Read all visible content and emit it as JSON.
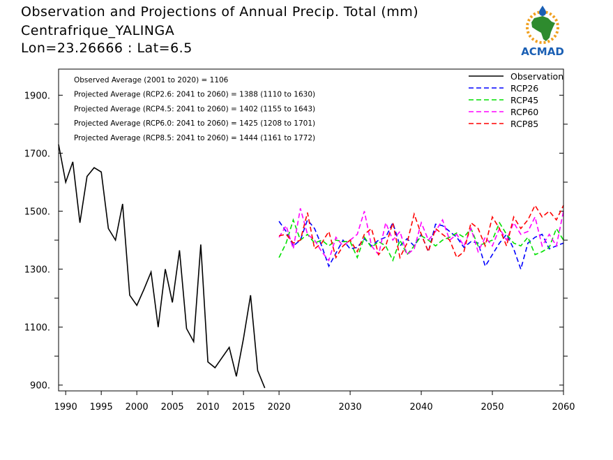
{
  "title": {
    "line1": "Observation and Projections of Annual Precip. Total (mm)",
    "line2": "Centrafrique_YALINGA",
    "line3": "Lon=23.26666 : Lat=6.5"
  },
  "logo": {
    "text": "ACMAD",
    "colors": {
      "africa": "#2e8b2e",
      "sun": "#f0a020",
      "drop": "#1a5fb4",
      "text": "#1a5fb4"
    }
  },
  "chart_data": {
    "type": "line",
    "xlim": [
      1989,
      2060
    ],
    "ylim": [
      880,
      1990
    ],
    "x_ticks": [
      {
        "value": 1990,
        "label": "1990"
      },
      {
        "value": 1995,
        "label": "1995"
      },
      {
        "value": 2000,
        "label": "2000"
      },
      {
        "value": 2005,
        "label": "2005"
      },
      {
        "value": 2010,
        "label": "2010"
      },
      {
        "value": 2015,
        "label": "2015"
      },
      {
        "value": 2020,
        "label": "2020"
      },
      {
        "value": 2030,
        "label": "2030"
      },
      {
        "value": 2040,
        "label": "2040"
      },
      {
        "value": 2050,
        "label": "2050"
      },
      {
        "value": 2060,
        "label": "2060"
      }
    ],
    "y_ticks": [
      {
        "value": 900,
        "label": "900."
      },
      {
        "value": 1100,
        "label": "1100."
      },
      {
        "value": 1300,
        "label": "1300."
      },
      {
        "value": 1500,
        "label": "1500."
      },
      {
        "value": 1700,
        "label": "1700."
      },
      {
        "value": 1900,
        "label": "1900."
      }
    ],
    "y_minor_ticks": [
      1000,
      1200,
      1400,
      1600,
      1800,
      2000
    ],
    "legend_position": "top-right",
    "annotations": [
      "Observed Average (2001 to 2020) = 1106",
      "Projected Average (RCP2.6: 2041 to 2060) = 1388 (1110 to 1630)",
      "Projected Average (RCP4.5: 2041 to 2060) = 1402 (1155 to 1643)",
      "Projected Average (RCP6.0: 2041 to 2060) = 1425 (1208 to 1701)",
      "Projected Average (RCP8.5: 2041 to 2060) = 1444 (1161 to 1772)"
    ],
    "series": [
      {
        "name": "Observation",
        "color": "#000000",
        "style": "solid",
        "x": [
          1989,
          1990,
          1991,
          1992,
          1993,
          1994,
          1995,
          1996,
          1997,
          1998,
          1999,
          2000,
          2001,
          2002,
          2003,
          2004,
          2005,
          2006,
          2007,
          2008,
          2009,
          2010,
          2011,
          2012,
          2013,
          2014,
          2015,
          2016,
          2017,
          2018,
          2019,
          2020
        ],
        "y": [
          1730,
          1600,
          1670,
          1460,
          1620,
          1650,
          1635,
          1440,
          1400,
          1525,
          1210,
          1175,
          1230,
          1290,
          1100,
          1300,
          1185,
          1365,
          1095,
          1050,
          1385,
          980,
          960,
          995,
          1030,
          930,
          1060,
          1210,
          950,
          890,
          null,
          null
        ]
      },
      {
        "name": "RCP26",
        "color": "#0000ff",
        "style": "dashed",
        "x": [
          2020,
          2021,
          2022,
          2023,
          2024,
          2025,
          2026,
          2027,
          2028,
          2029,
          2030,
          2031,
          2032,
          2033,
          2034,
          2035,
          2036,
          2037,
          2038,
          2039,
          2040,
          2041,
          2042,
          2043,
          2044,
          2045,
          2046,
          2047,
          2048,
          2049,
          2050,
          2051,
          2052,
          2053,
          2054,
          2055,
          2056,
          2057,
          2058,
          2059,
          2060
        ],
        "y": [
          1465,
          1430,
          1380,
          1400,
          1470,
          1440,
          1380,
          1310,
          1355,
          1400,
          1370,
          1375,
          1405,
          1380,
          1400,
          1410,
          1460,
          1380,
          1405,
          1380,
          1420,
          1360,
          1455,
          1450,
          1430,
          1410,
          1375,
          1395,
          1390,
          1310,
          1350,
          1390,
          1420,
          1370,
          1300,
          1390,
          1410,
          1420,
          1370,
          1380,
          1390
        ]
      },
      {
        "name": "RCP45",
        "color": "#00e000",
        "style": "dashed",
        "x": [
          2020,
          2021,
          2022,
          2023,
          2024,
          2025,
          2026,
          2027,
          2028,
          2029,
          2030,
          2031,
          2032,
          2033,
          2034,
          2035,
          2036,
          2037,
          2038,
          2039,
          2040,
          2041,
          2042,
          2043,
          2044,
          2045,
          2046,
          2047,
          2048,
          2049,
          2050,
          2051,
          2052,
          2053,
          2054,
          2055,
          2056,
          2057,
          2058,
          2059,
          2060
        ],
        "y": [
          1340,
          1390,
          1470,
          1400,
          1420,
          1390,
          1400,
          1380,
          1400,
          1395,
          1395,
          1340,
          1410,
          1375,
          1395,
          1380,
          1330,
          1400,
          1350,
          1380,
          1415,
          1400,
          1380,
          1400,
          1410,
          1425,
          1410,
          1440,
          1380,
          1390,
          1400,
          1460,
          1420,
          1390,
          1380,
          1410,
          1350,
          1360,
          1375,
          1440,
          1400
        ]
      },
      {
        "name": "RCP60",
        "color": "#ff00ff",
        "style": "dashed",
        "x": [
          2020,
          2021,
          2022,
          2023,
          2024,
          2025,
          2026,
          2027,
          2028,
          2029,
          2030,
          2031,
          2032,
          2033,
          2034,
          2035,
          2036,
          2037,
          2038,
          2039,
          2040,
          2041,
          2042,
          2043,
          2044,
          2045,
          2046,
          2047,
          2048,
          2049,
          2050,
          2051,
          2052,
          2053,
          2054,
          2055,
          2056,
          2057,
          2058,
          2059,
          2060
        ],
        "y": [
          1410,
          1450,
          1370,
          1510,
          1420,
          1400,
          1360,
          1330,
          1410,
          1380,
          1400,
          1420,
          1500,
          1380,
          1350,
          1460,
          1400,
          1430,
          1350,
          1370,
          1460,
          1400,
          1430,
          1470,
          1400,
          1420,
          1380,
          1440,
          1360,
          1410,
          1380,
          1440,
          1400,
          1460,
          1420,
          1430,
          1480,
          1380,
          1420,
          1380,
          1500
        ]
      },
      {
        "name": "RCP85",
        "color": "#ff0000",
        "style": "dashed",
        "x": [
          2020,
          2021,
          2022,
          2023,
          2024,
          2025,
          2026,
          2027,
          2028,
          2029,
          2030,
          2031,
          2032,
          2033,
          2034,
          2035,
          2036,
          2037,
          2038,
          2039,
          2040,
          2041,
          2042,
          2043,
          2044,
          2045,
          2046,
          2047,
          2048,
          2049,
          2050,
          2051,
          2052,
          2053,
          2054,
          2055,
          2056,
          2057,
          2058,
          2059,
          2060
        ],
        "y": [
          1415,
          1420,
          1390,
          1400,
          1495,
          1370,
          1390,
          1430,
          1340,
          1380,
          1400,
          1360,
          1420,
          1440,
          1350,
          1380,
          1460,
          1340,
          1390,
          1490,
          1420,
          1360,
          1440,
          1420,
          1400,
          1340,
          1360,
          1460,
          1440,
          1380,
          1480,
          1440,
          1380,
          1480,
          1440,
          1470,
          1520,
          1480,
          1500,
          1470,
          1520
        ]
      }
    ]
  }
}
